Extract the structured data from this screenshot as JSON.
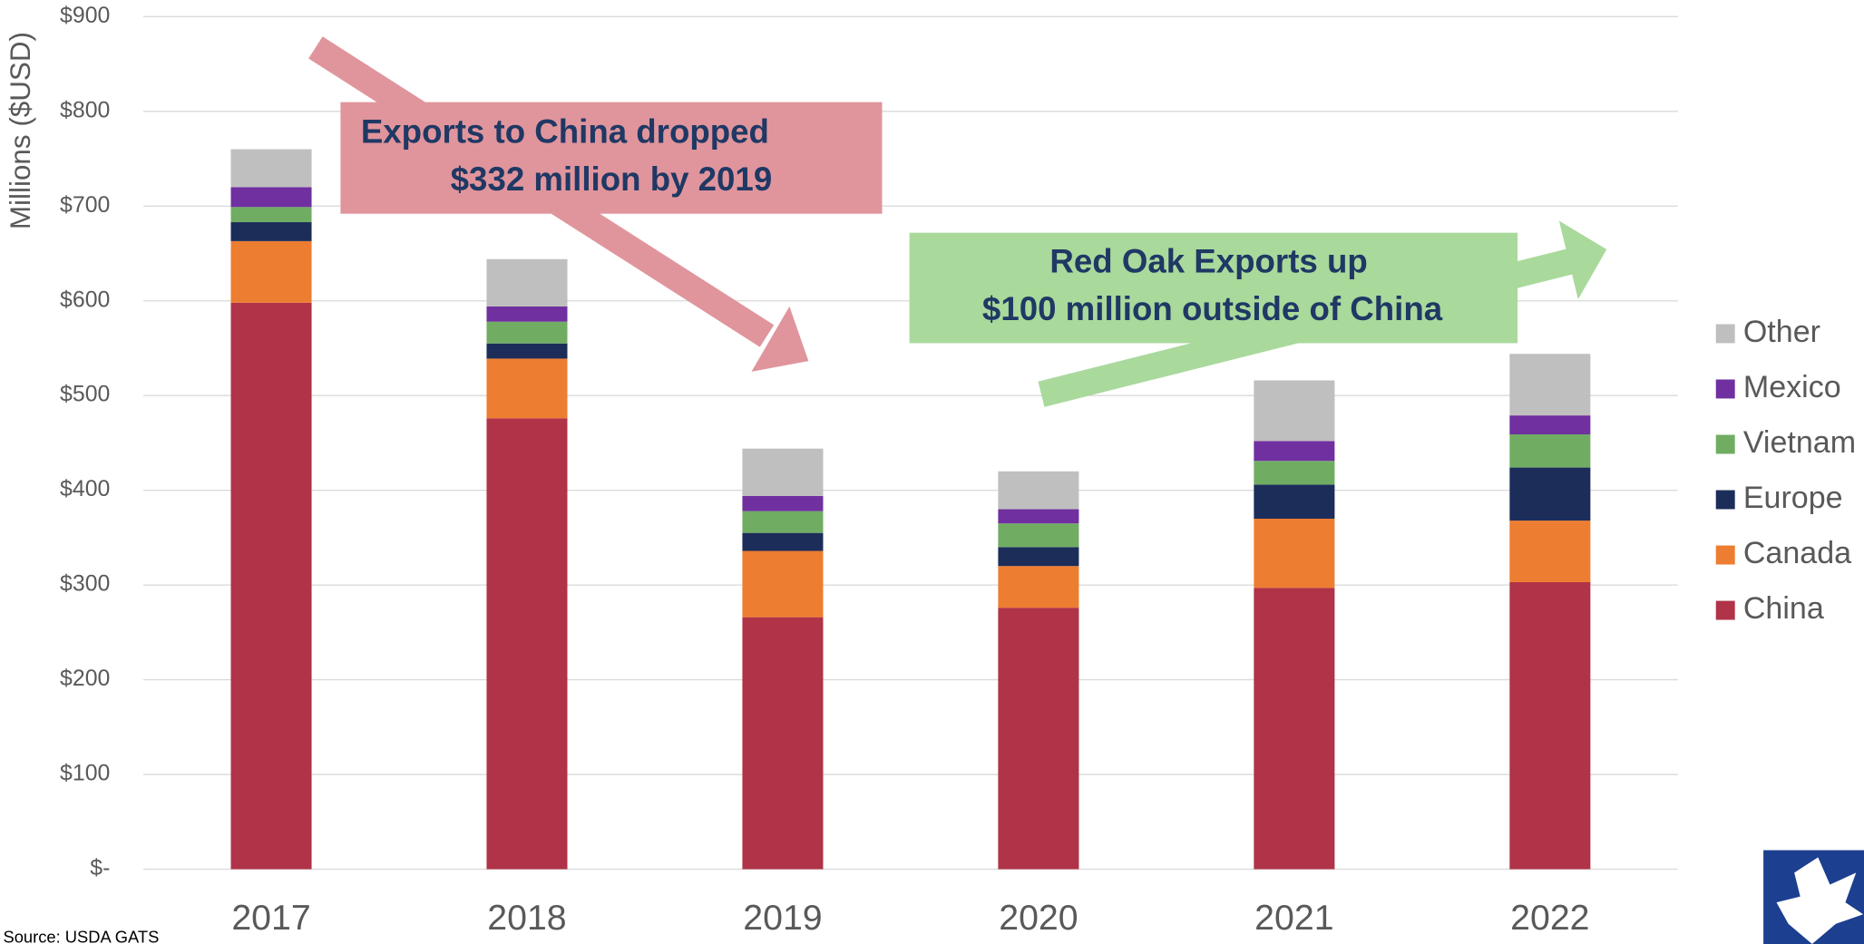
{
  "chart_data": {
    "type": "stacked_bar",
    "y_label": "Millions ($USD)",
    "source": "Source: USDA GATS",
    "categories": [
      "2017",
      "2018",
      "2019",
      "2020",
      "2021",
      "2022"
    ],
    "series": [
      {
        "name": "China",
        "color": "#b03348",
        "values": [
          598,
          476,
          266,
          276,
          297,
          303
        ]
      },
      {
        "name": "Canada",
        "color": "#ed7d31",
        "values": [
          65,
          63,
          70,
          44,
          73,
          65
        ]
      },
      {
        "name": "Europe",
        "color": "#1c2d5a",
        "values": [
          20,
          16,
          19,
          20,
          36,
          56
        ]
      },
      {
        "name": "Vietnam",
        "color": "#70ad63",
        "values": [
          16,
          23,
          23,
          25,
          25,
          35
        ]
      },
      {
        "name": "Mexico",
        "color": "#7030a0",
        "values": [
          21,
          16,
          16,
          15,
          21,
          20
        ]
      },
      {
        "name": "Other",
        "color": "#bfbfbf",
        "values": [
          40,
          50,
          50,
          40,
          64,
          65
        ]
      }
    ],
    "ylim": [
      0,
      900
    ],
    "yticks": [
      {
        "value": 0,
        "label": "$-"
      },
      {
        "value": 100,
        "label": "$100"
      },
      {
        "value": 200,
        "label": "$200"
      },
      {
        "value": 300,
        "label": "$300"
      },
      {
        "value": 400,
        "label": "$400"
      },
      {
        "value": 500,
        "label": "$500"
      },
      {
        "value": 600,
        "label": "$600"
      },
      {
        "value": 700,
        "label": "$700"
      },
      {
        "value": 800,
        "label": "$800"
      },
      {
        "value": 900,
        "label": "$900"
      }
    ],
    "grid": true,
    "legend": "right",
    "annotations": [
      {
        "lines": [
          "Exports to China dropped",
          "$332 million by 2019"
        ]
      },
      {
        "lines": [
          "Red Oak Exports up",
          "$100 million outside of China"
        ]
      }
    ]
  }
}
